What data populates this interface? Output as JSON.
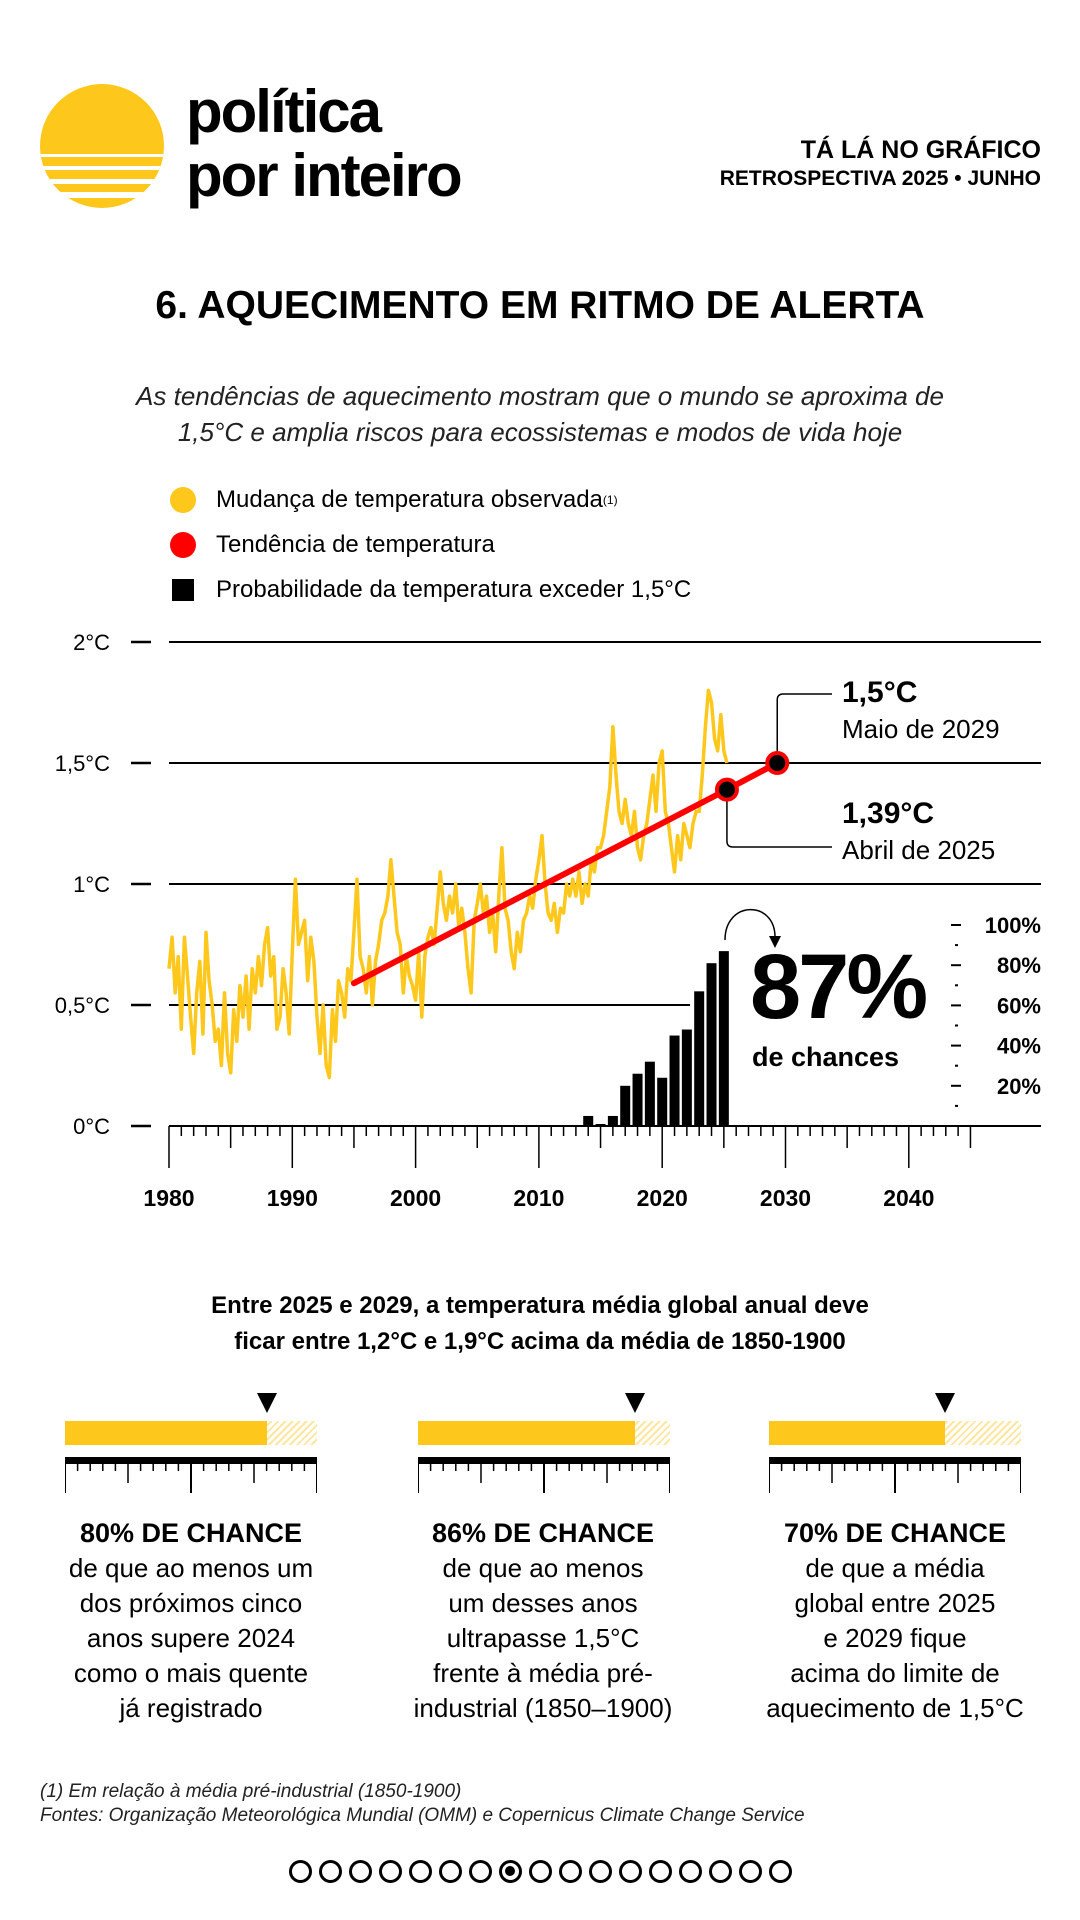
{
  "brand": {
    "name_line1": "política",
    "name_line2": "por inteiro",
    "logo_color": "#FDC71C"
  },
  "kicker": {
    "line1": "TÁ LÁ NO GRÁFICO",
    "line2": "RETROSPECTIVA 2025 • JUNHO"
  },
  "title": "6. AQUECIMENTO EM RITMO DE ALERTA",
  "subtitle": [
    "As tendências de aquecimento mostram que o mundo se aproxima de",
    "1,5°C e amplia riscos para ecossistemas e modos de vida hoje"
  ],
  "legend": [
    {
      "label": "Mudança de temperatura observada",
      "sup": "(1)",
      "color": "#FDC71C",
      "shape": "circle"
    },
    {
      "label": "Tendência de temperatura",
      "color": "#FF0000",
      "shape": "circle"
    },
    {
      "label": "Probabilidade da temperatura exceder 1,5°C",
      "color": "#000000",
      "shape": "square"
    }
  ],
  "chart_data": {
    "type": "line",
    "x_ticks": [
      "1980",
      "1990",
      "2000",
      "2010",
      "2020",
      "2030",
      "2040"
    ],
    "xlim": [
      1980,
      2050
    ],
    "y_ticks": [
      "0°C",
      "0,5°C",
      "1°C",
      "1,5°C",
      "2°C"
    ],
    "ylim": [
      0,
      2
    ],
    "grid": true,
    "observed": {
      "color": "#FDC71C",
      "quarterly": [
        {
          "year": 1980,
          "values": [
            0.65,
            0.78,
            0.55,
            0.7
          ]
        },
        {
          "year": 1981,
          "values": [
            0.4,
            0.78,
            0.62,
            0.45
          ]
        },
        {
          "year": 1982,
          "values": [
            0.3,
            0.55,
            0.68,
            0.38
          ]
        },
        {
          "year": 1983,
          "values": [
            0.8,
            0.6,
            0.5,
            0.35
          ]
        },
        {
          "year": 1984,
          "values": [
            0.4,
            0.25,
            0.55,
            0.3
          ]
        },
        {
          "year": 1985,
          "values": [
            0.22,
            0.48,
            0.35,
            0.58
          ]
        },
        {
          "year": 1986,
          "values": [
            0.45,
            0.62,
            0.4,
            0.65
          ]
        },
        {
          "year": 1987,
          "values": [
            0.55,
            0.7,
            0.58,
            0.75
          ]
        },
        {
          "year": 1988,
          "values": [
            0.82,
            0.62,
            0.7,
            0.4
          ]
        },
        {
          "year": 1989,
          "values": [
            0.45,
            0.65,
            0.55,
            0.38
          ]
        },
        {
          "year": 1990,
          "values": [
            0.72,
            1.02,
            0.75,
            0.8
          ]
        },
        {
          "year": 1991,
          "values": [
            0.85,
            0.6,
            0.78,
            0.68
          ]
        },
        {
          "year": 1992,
          "values": [
            0.45,
            0.3,
            0.5,
            0.25
          ]
        },
        {
          "year": 1993,
          "values": [
            0.2,
            0.48,
            0.35,
            0.6
          ]
        },
        {
          "year": 1994,
          "values": [
            0.55,
            0.45,
            0.65,
            0.6
          ]
        },
        {
          "year": 1995,
          "values": [
            0.8,
            1.02,
            0.7,
            0.65
          ]
        },
        {
          "year": 1996,
          "values": [
            0.55,
            0.7,
            0.5,
            0.68
          ]
        },
        {
          "year": 1997,
          "values": [
            0.75,
            0.85,
            0.88,
            0.95
          ]
        },
        {
          "year": 1998,
          "values": [
            1.1,
            0.95,
            0.8,
            0.75
          ]
        },
        {
          "year": 1999,
          "values": [
            0.55,
            0.7,
            0.62,
            0.58
          ]
        },
        {
          "year": 2000,
          "values": [
            0.52,
            0.72,
            0.45,
            0.7
          ]
        },
        {
          "year": 2001,
          "values": [
            0.78,
            0.82,
            0.75,
            0.9
          ]
        },
        {
          "year": 2002,
          "values": [
            1.05,
            0.92,
            0.85,
            0.95
          ]
        },
        {
          "year": 2003,
          "values": [
            0.88,
            1.0,
            0.82,
            0.9
          ]
        },
        {
          "year": 2004,
          "values": [
            0.8,
            0.65,
            0.55,
            0.85
          ]
        },
        {
          "year": 2005,
          "values": [
            0.92,
            1.0,
            0.88,
            0.95
          ]
        },
        {
          "year": 2006,
          "values": [
            0.8,
            0.88,
            0.72,
            0.95
          ]
        },
        {
          "year": 2007,
          "values": [
            1.15,
            0.9,
            0.85,
            0.72
          ]
        },
        {
          "year": 2008,
          "values": [
            0.65,
            0.8,
            0.72,
            0.85
          ]
        },
        {
          "year": 2009,
          "values": [
            0.88,
            0.95,
            0.9,
            1.02
          ]
        },
        {
          "year": 2010,
          "values": [
            1.1,
            1.2,
            1.0,
            0.88
          ]
        },
        {
          "year": 2011,
          "values": [
            0.85,
            0.92,
            0.8,
            0.9
          ]
        },
        {
          "year": 2012,
          "values": [
            0.88,
            1.0,
            0.95,
            1.02
          ]
        },
        {
          "year": 2013,
          "values": [
            0.95,
            1.05,
            0.92,
            1.0
          ]
        },
        {
          "year": 2014,
          "values": [
            0.95,
            1.1,
            1.05,
            1.15
          ]
        },
        {
          "year": 2015,
          "values": [
            1.15,
            1.2,
            1.3,
            1.4
          ]
        },
        {
          "year": 2016,
          "values": [
            1.65,
            1.45,
            1.3,
            1.25
          ]
        },
        {
          "year": 2017,
          "values": [
            1.35,
            1.25,
            1.2,
            1.3
          ]
        },
        {
          "year": 2018,
          "values": [
            1.15,
            1.1,
            1.2,
            1.25
          ]
        },
        {
          "year": 2019,
          "values": [
            1.35,
            1.45,
            1.3,
            1.5
          ]
        },
        {
          "year": 2020,
          "values": [
            1.55,
            1.3,
            1.25,
            1.15
          ]
        },
        {
          "year": 2021,
          "values": [
            1.05,
            1.2,
            1.1,
            1.25
          ]
        },
        {
          "year": 2022,
          "values": [
            1.2,
            1.15,
            1.25,
            1.3
          ]
        },
        {
          "year": 2023,
          "values": [
            1.3,
            1.45,
            1.65,
            1.8
          ]
        },
        {
          "year": 2024,
          "values": [
            1.75,
            1.6,
            1.55,
            1.7
          ]
        },
        {
          "year": 2025,
          "values": [
            1.55,
            1.5
          ]
        }
      ]
    },
    "trend": {
      "color": "#FF0000",
      "points": [
        [
          1995,
          0.59
        ],
        [
          2025.25,
          1.39
        ],
        [
          2029.33,
          1.5
        ]
      ]
    },
    "annotations": [
      {
        "value": "1,5°C",
        "label": "Maio de 2029",
        "x": 2029.33,
        "y": 1.5
      },
      {
        "value": "1,39°C",
        "label": "Abril de 2025",
        "x": 2025.25,
        "y": 1.39
      }
    ],
    "probability": {
      "color": "#000000",
      "years": [
        2014,
        2015,
        2016,
        2017,
        2018,
        2019,
        2020,
        2021,
        2022,
        2023,
        2024,
        2025
      ],
      "values": [
        5,
        1,
        5,
        20,
        26,
        32,
        24,
        45,
        48,
        67,
        81,
        87
      ],
      "axis_ticks": [
        "20%",
        "40%",
        "60%",
        "80%",
        "100%"
      ],
      "ylim": [
        0,
        100
      ]
    },
    "highlight": {
      "value": "87%",
      "label": "de chances"
    }
  },
  "subhead": [
    "Entre 2025 e 2029, a temperatura média global anual deve",
    "ficar entre 1,2°C e 1,9°C acima da média de 1850-1900"
  ],
  "gauges": [
    {
      "percent": 80,
      "title": "80% DE CHANCE",
      "lines": [
        "de que ao menos um",
        "dos próximos cinco",
        "anos supere 2024",
        "como o mais quente",
        "já registrado"
      ]
    },
    {
      "percent": 86,
      "title": "86% DE CHANCE",
      "lines": [
        "de que ao menos",
        "um desses anos",
        "ultrapasse 1,5°C",
        "frente à média pré-",
        "industrial (1850–1900)"
      ]
    },
    {
      "percent": 70,
      "title": "70% DE CHANCE",
      "lines": [
        "de que a média",
        "global entre 2025",
        "e 2029 fique",
        "acima do limite de",
        "aquecimento de 1,5°C"
      ]
    }
  ],
  "footnotes": [
    "(1) Em relação à média pré-industrial (1850-1900)",
    "Fontes: Organização Meteorológica Mundial (OMM) e Copernicus Climate Change Service"
  ],
  "pagination": {
    "total": 17,
    "current": 8
  }
}
